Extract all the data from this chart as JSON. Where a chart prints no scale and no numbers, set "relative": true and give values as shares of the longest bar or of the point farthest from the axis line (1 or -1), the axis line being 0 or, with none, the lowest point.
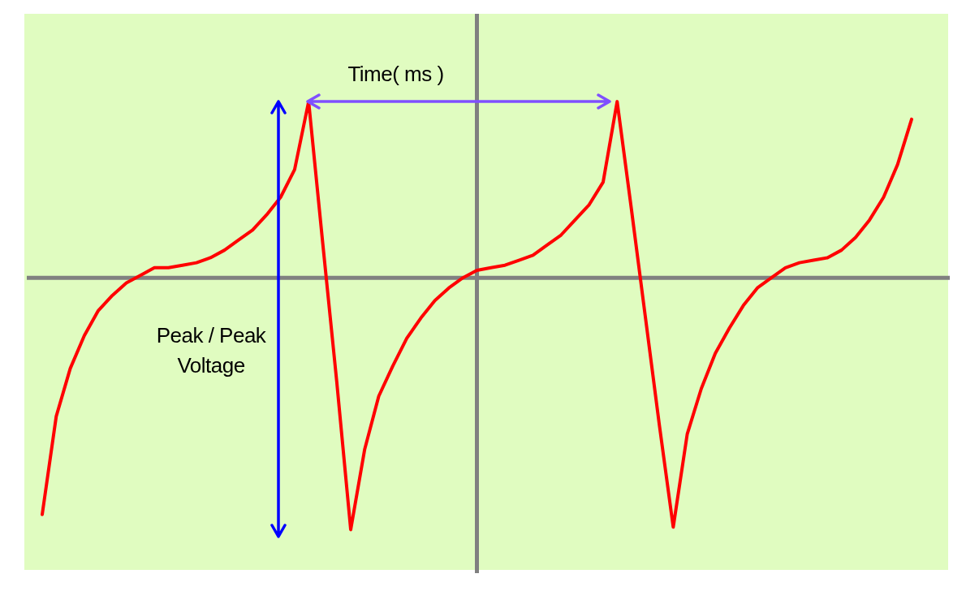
{
  "chart_data": {
    "type": "line",
    "relative": true,
    "legend": false,
    "grid": false,
    "marker": "none",
    "line_style": "solid",
    "categories": [
      null,
      null,
      null,
      null,
      null,
      null,
      null,
      null,
      null,
      null,
      null,
      null,
      null,
      null,
      null,
      null,
      null,
      null,
      null,
      null,
      null,
      null,
      null,
      null,
      null,
      null,
      null,
      null,
      null,
      null,
      null,
      null,
      null,
      null,
      null,
      null,
      null,
      null,
      null,
      null,
      null,
      null,
      null,
      null,
      null,
      null,
      null,
      null,
      null,
      null,
      null,
      null,
      null,
      null,
      null,
      null,
      null,
      null,
      null,
      null,
      null,
      null,
      null
    ],
    "series": [
      {
        "color": "#ff0000",
        "values": [
          -0.94,
          -0.55,
          -0.36,
          -0.23,
          -0.13,
          -0.07,
          -0.02,
          0.01,
          0.04,
          0.04,
          0.05,
          0.06,
          0.08,
          0.11,
          0.15,
          0.19,
          0.25,
          0.32,
          0.43,
          0.7,
          0.14,
          -0.41,
          -1,
          -0.68,
          -0.47,
          -0.35,
          -0.24,
          -0.16,
          -0.09,
          -0.04,
          0,
          0.03,
          0.04,
          0.05,
          0.07,
          0.09,
          0.13,
          0.17,
          0.23,
          0.29,
          0.38,
          0.7,
          0.28,
          -0.15,
          -0.58,
          -0.99,
          -0.62,
          -0.44,
          -0.3,
          -0.2,
          -0.11,
          -0.04,
          0.0,
          0.04,
          0.06,
          0.07,
          0.08,
          0.11,
          0.16,
          0.23,
          0.32,
          0.45,
          0.63
        ]
      }
    ],
    "annotations": [
      "Time( ms )",
      "Peak / Peak\nVoltage"
    ]
  }
}
